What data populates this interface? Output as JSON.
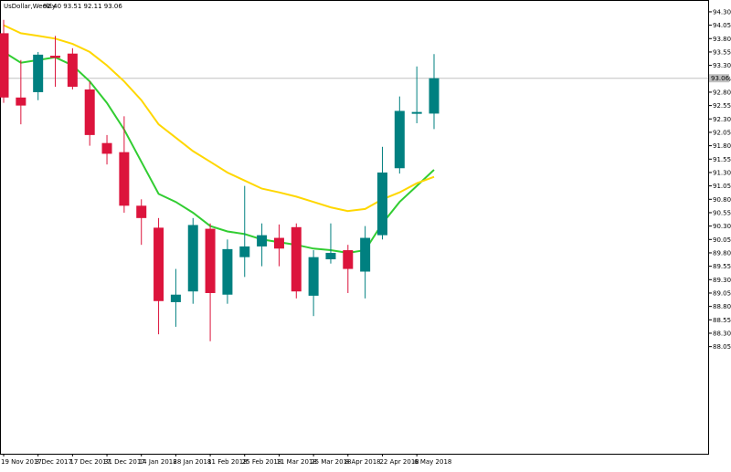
{
  "header": {
    "symbol_timeframe": "UsDollar,Weekly",
    "ohlc": "92.40 93.51 92.11 93.06"
  },
  "current_price_label": "93.06",
  "colors": {
    "bull": "#008080",
    "bear": "#dc143c",
    "ma_fast": "#32cd32",
    "ma_slow": "#ffd700",
    "price_line": "#c0c0c0",
    "axis": "#000000"
  },
  "chart_data": {
    "type": "candlestick",
    "title": "UsDollar,Weekly",
    "xlabel": "",
    "ylabel": "",
    "ylim": [
      86.05,
      94.35
    ],
    "y_ticks": [
      "94.30",
      "94.05",
      "93.80",
      "93.55",
      "93.30",
      "93.05",
      "92.80",
      "92.55",
      "92.30",
      "92.05",
      "91.80",
      "91.55",
      "91.30",
      "91.05",
      "90.80",
      "90.55",
      "90.30",
      "90.05",
      "89.80",
      "89.55",
      "89.30",
      "89.05",
      "88.80",
      "88.55",
      "88.30",
      "88.05"
    ],
    "x_tick_labels": [
      {
        "index": 0,
        "label": "19 Nov 2017"
      },
      {
        "index": 2,
        "label": "3 Dec 2017"
      },
      {
        "index": 4,
        "label": "17 Dec 2017"
      },
      {
        "index": 6,
        "label": "31 Dec 2017"
      },
      {
        "index": 8,
        "label": "14 Jan 2018"
      },
      {
        "index": 10,
        "label": "28 Jan 2018"
      },
      {
        "index": 12,
        "label": "11 Feb 2018"
      },
      {
        "index": 14,
        "label": "25 Feb 2018"
      },
      {
        "index": 16,
        "label": "11 Mar 2018"
      },
      {
        "index": 18,
        "label": "25 Mar 2018"
      },
      {
        "index": 20,
        "label": "8 Apr 2018"
      },
      {
        "index": 22,
        "label": "22 Apr 2018"
      },
      {
        "index": 24,
        "label": "6 May 2018"
      }
    ],
    "candles": [
      {
        "open": 93.9,
        "high": 94.15,
        "low": 92.6,
        "close": 92.7
      },
      {
        "open": 92.7,
        "high": 93.4,
        "low": 92.2,
        "close": 92.55
      },
      {
        "open": 92.8,
        "high": 93.55,
        "low": 92.65,
        "close": 93.5
      },
      {
        "open": 93.48,
        "high": 93.85,
        "low": 92.9,
        "close": 93.44
      },
      {
        "open": 93.52,
        "high": 93.62,
        "low": 92.85,
        "close": 92.9
      },
      {
        "open": 92.85,
        "high": 93.0,
        "low": 91.8,
        "close": 92.0
      },
      {
        "open": 91.85,
        "high": 92.0,
        "low": 91.45,
        "close": 91.65
      },
      {
        "open": 91.68,
        "high": 92.35,
        "low": 90.55,
        "close": 90.68
      },
      {
        "open": 90.68,
        "high": 90.8,
        "low": 89.95,
        "close": 90.45
      },
      {
        "open": 90.27,
        "high": 90.45,
        "low": 88.28,
        "close": 88.9
      },
      {
        "open": 88.88,
        "high": 89.5,
        "low": 88.42,
        "close": 89.02
      },
      {
        "open": 89.08,
        "high": 90.45,
        "low": 88.85,
        "close": 90.32
      },
      {
        "open": 90.25,
        "high": 90.35,
        "low": 88.15,
        "close": 89.05
      },
      {
        "open": 89.02,
        "high": 90.05,
        "low": 88.85,
        "close": 89.87
      },
      {
        "open": 89.72,
        "high": 91.05,
        "low": 89.35,
        "close": 89.92
      },
      {
        "open": 89.92,
        "high": 90.35,
        "low": 89.55,
        "close": 90.13
      },
      {
        "open": 90.08,
        "high": 90.33,
        "low": 89.55,
        "close": 89.88
      },
      {
        "open": 90.28,
        "high": 90.35,
        "low": 88.95,
        "close": 89.08
      },
      {
        "open": 89.0,
        "high": 89.85,
        "low": 88.62,
        "close": 89.72
      },
      {
        "open": 89.68,
        "high": 90.35,
        "low": 89.6,
        "close": 89.8
      },
      {
        "open": 89.85,
        "high": 89.95,
        "low": 89.05,
        "close": 89.5
      },
      {
        "open": 89.45,
        "high": 90.3,
        "low": 88.95,
        "close": 90.08
      },
      {
        "open": 90.13,
        "high": 91.78,
        "low": 90.05,
        "close": 91.3
      },
      {
        "open": 91.38,
        "high": 92.72,
        "low": 91.28,
        "close": 92.45
      },
      {
        "open": 92.4,
        "high": 93.28,
        "low": 92.22,
        "close": 92.43
      },
      {
        "open": 92.4,
        "high": 93.51,
        "low": 92.11,
        "close": 93.06
      }
    ],
    "series": [
      {
        "type": "line",
        "values": [
          93.55,
          93.35,
          93.4,
          93.45,
          93.3,
          93.0,
          92.6,
          92.1,
          91.5,
          90.9,
          90.75,
          90.55,
          90.3,
          90.2,
          90.15,
          90.05,
          90.0,
          89.95,
          89.88,
          89.85,
          89.8,
          89.85,
          90.35,
          90.75,
          91.05,
          91.35
        ]
      },
      {
        "type": "line",
        "values": [
          94.05,
          93.9,
          93.85,
          93.8,
          93.7,
          93.55,
          93.3,
          93.0,
          92.65,
          92.2,
          91.95,
          91.7,
          91.5,
          91.3,
          91.15,
          91.0,
          90.93,
          90.85,
          90.75,
          90.65,
          90.58,
          90.62,
          90.8,
          90.93,
          91.1,
          91.22
        ]
      }
    ],
    "current_price": 93.06,
    "grid": false
  }
}
